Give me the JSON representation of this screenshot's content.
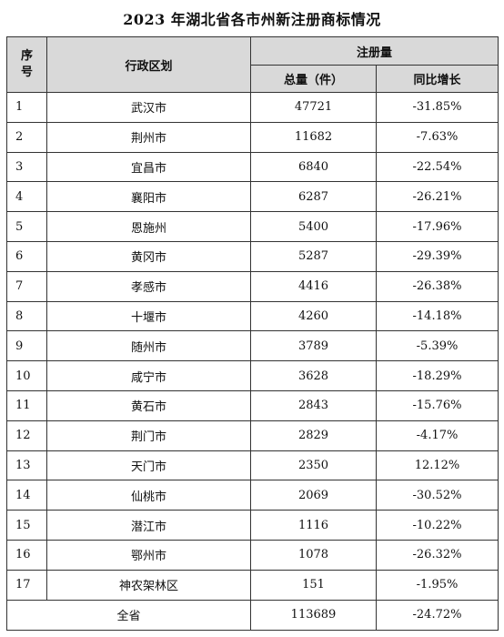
{
  "title": "2023 年湖北省各市州新注册商标情况",
  "headers": {
    "index_line1": "序",
    "index_line2": "号",
    "region": "行政区划",
    "group": "注册量",
    "total": "总量（件）",
    "yoy": "同比增长"
  },
  "rows": [
    {
      "idx": "1",
      "region": "武汉市",
      "total": "47721",
      "yoy": "-31.85%"
    },
    {
      "idx": "2",
      "region": "荆州市",
      "total": "11682",
      "yoy": "-7.63%"
    },
    {
      "idx": "3",
      "region": "宜昌市",
      "total": "6840",
      "yoy": "-22.54%"
    },
    {
      "idx": "4",
      "region": "襄阳市",
      "total": "6287",
      "yoy": "-26.21%"
    },
    {
      "idx": "5",
      "region": "恩施州",
      "total": "5400",
      "yoy": "-17.96%"
    },
    {
      "idx": "6",
      "region": "黄冈市",
      "total": "5287",
      "yoy": "-29.39%"
    },
    {
      "idx": "7",
      "region": "孝感市",
      "total": "4416",
      "yoy": "-26.38%"
    },
    {
      "idx": "8",
      "region": "十堰市",
      "total": "4260",
      "yoy": "-14.18%"
    },
    {
      "idx": "9",
      "region": "随州市",
      "total": "3789",
      "yoy": "-5.39%"
    },
    {
      "idx": "10",
      "region": "咸宁市",
      "total": "3628",
      "yoy": "-18.29%"
    },
    {
      "idx": "11",
      "region": "黄石市",
      "total": "2843",
      "yoy": "-15.76%"
    },
    {
      "idx": "12",
      "region": "荆门市",
      "total": "2829",
      "yoy": "-4.17%"
    },
    {
      "idx": "13",
      "region": "天门市",
      "total": "2350",
      "yoy": "12.12%"
    },
    {
      "idx": "14",
      "region": "仙桃市",
      "total": "2069",
      "yoy": "-30.52%"
    },
    {
      "idx": "15",
      "region": "潜江市",
      "total": "1116",
      "yoy": "-10.22%"
    },
    {
      "idx": "16",
      "region": "鄂州市",
      "total": "1078",
      "yoy": "-26.32%"
    },
    {
      "idx": "17",
      "region": "神农架林区",
      "total": "151",
      "yoy": "-1.95%"
    }
  ],
  "summary": {
    "label": "全省",
    "total": "113689",
    "yoy": "-24.72%"
  }
}
